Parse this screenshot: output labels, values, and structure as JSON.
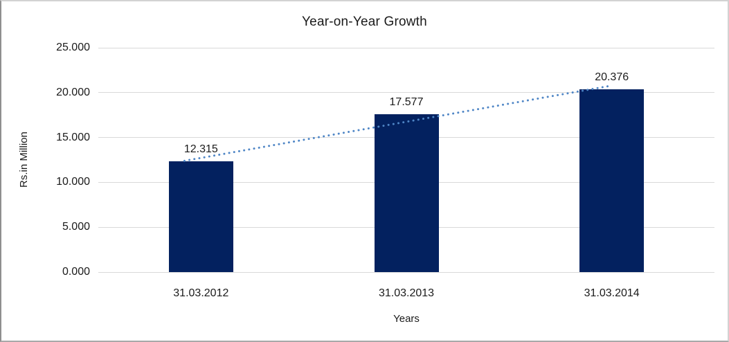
{
  "chart_data": {
    "type": "bar",
    "title": "Year-on-Year Growth",
    "xlabel": "Years",
    "ylabel": "Rs.in Million",
    "categories": [
      "31.03.2012",
      "31.03.2013",
      "31.03.2014"
    ],
    "values": [
      12.315,
      17.577,
      20.376
    ],
    "value_labels": [
      "12.315",
      "17.577",
      "20.376"
    ],
    "ylim": [
      0,
      25
    ],
    "ytick_labels": [
      "0.000",
      "5.000",
      "10.000",
      "15.000",
      "20.000",
      "25.000"
    ],
    "grid": true,
    "legend_position": "none",
    "trendline": {
      "type": "linear",
      "style": "dotted",
      "color": "#4f86c6"
    },
    "colors": {
      "bar": "#03215f",
      "gridline": "#d9d9d9",
      "text": "#1a1a1a",
      "trend": "#4f86c6",
      "background": "#ffffff"
    }
  }
}
